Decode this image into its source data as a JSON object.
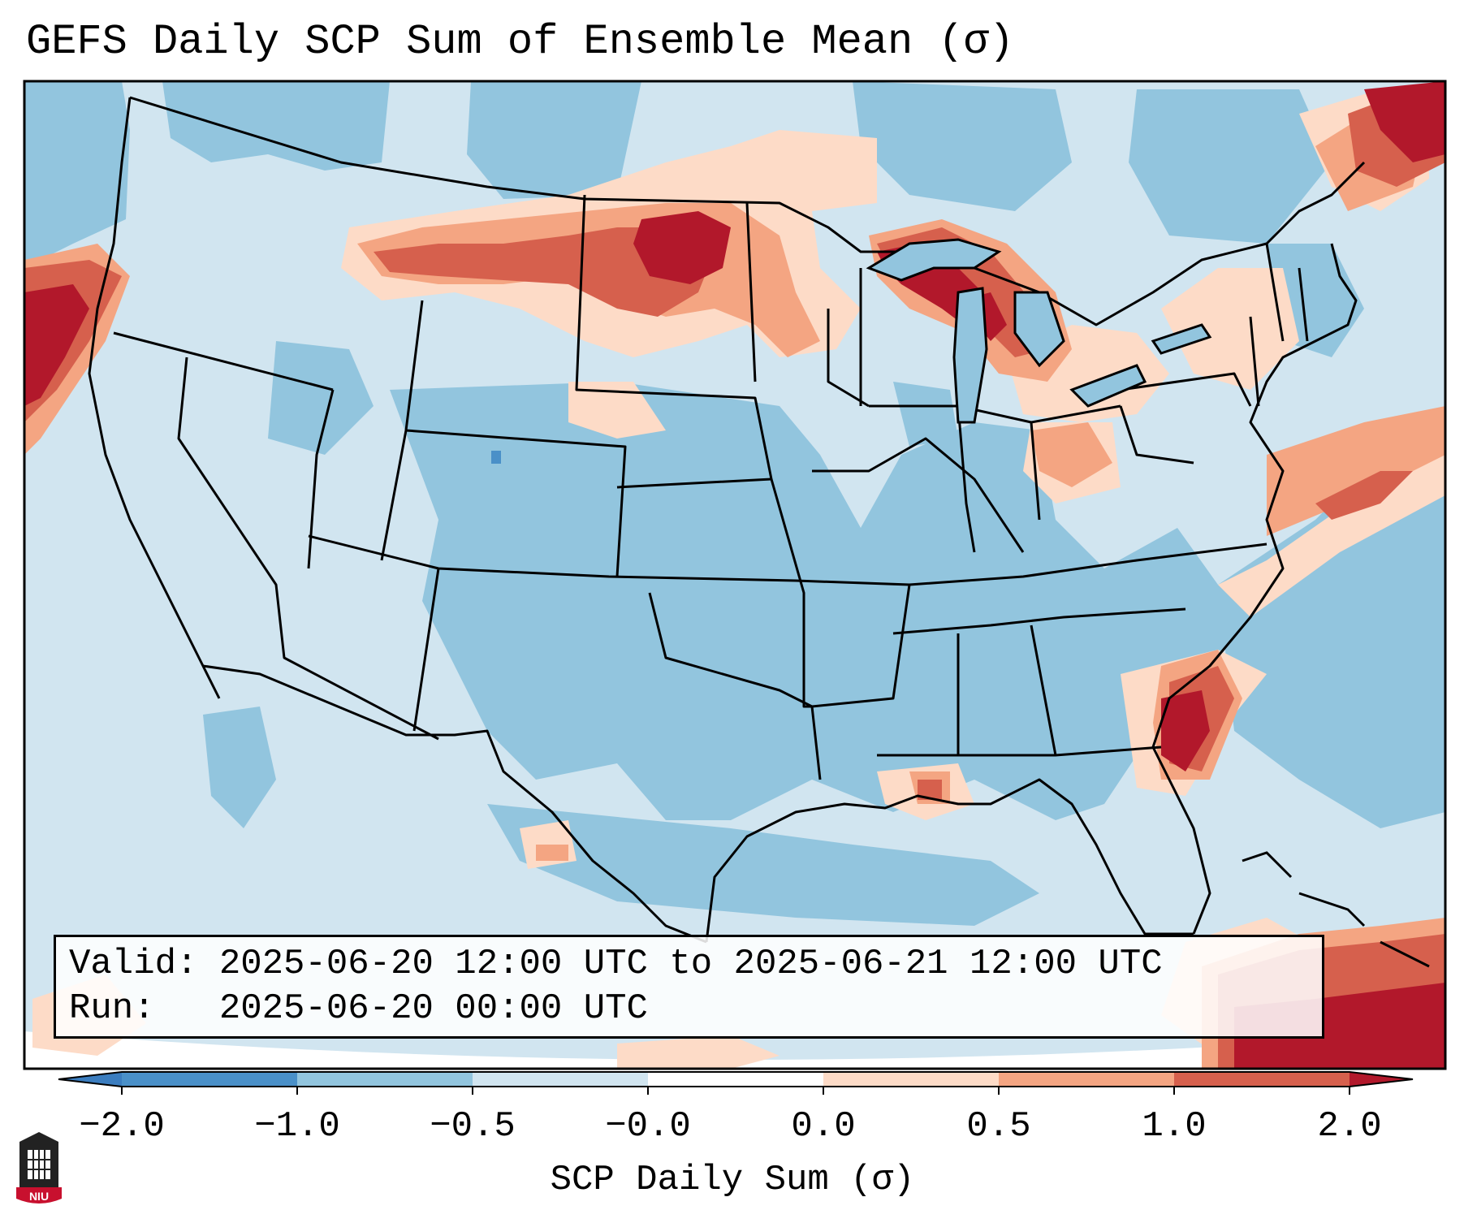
{
  "title": "GEFS Daily SCP Sum of Ensemble Mean (σ)",
  "info": {
    "valid_label": "Valid:",
    "valid_value": "2025-06-20 12:00 UTC to 2025-06-21 12:00 UTC",
    "run_label": "Run:",
    "run_value": "2025-06-20 00:00 UTC"
  },
  "colorbar": {
    "title": "SCP Daily Sum (σ)",
    "tick_labels": [
      "−2.0",
      "−1.0",
      "−0.5",
      "−0.0",
      "0.0",
      "0.5",
      "1.0",
      "2.0"
    ],
    "colors": {
      "under": "#3b7dbf",
      "b_-2_-1": "#4a90c8",
      "b_-1_-0.5": "#92c5de",
      "b_-0.5_0": "#d1e5f0",
      "b_0_0.5": "#fddbc7",
      "b_0.5_1": "#f4a582",
      "b_1_2": "#d6604d",
      "over": "#b2182b"
    }
  },
  "logo": {
    "text": "NIU"
  },
  "map": {
    "background_value_sigma": -0.5,
    "ocean_label": "",
    "features": [
      "state-borders",
      "coastlines",
      "great-lakes",
      "country-borders"
    ]
  }
}
